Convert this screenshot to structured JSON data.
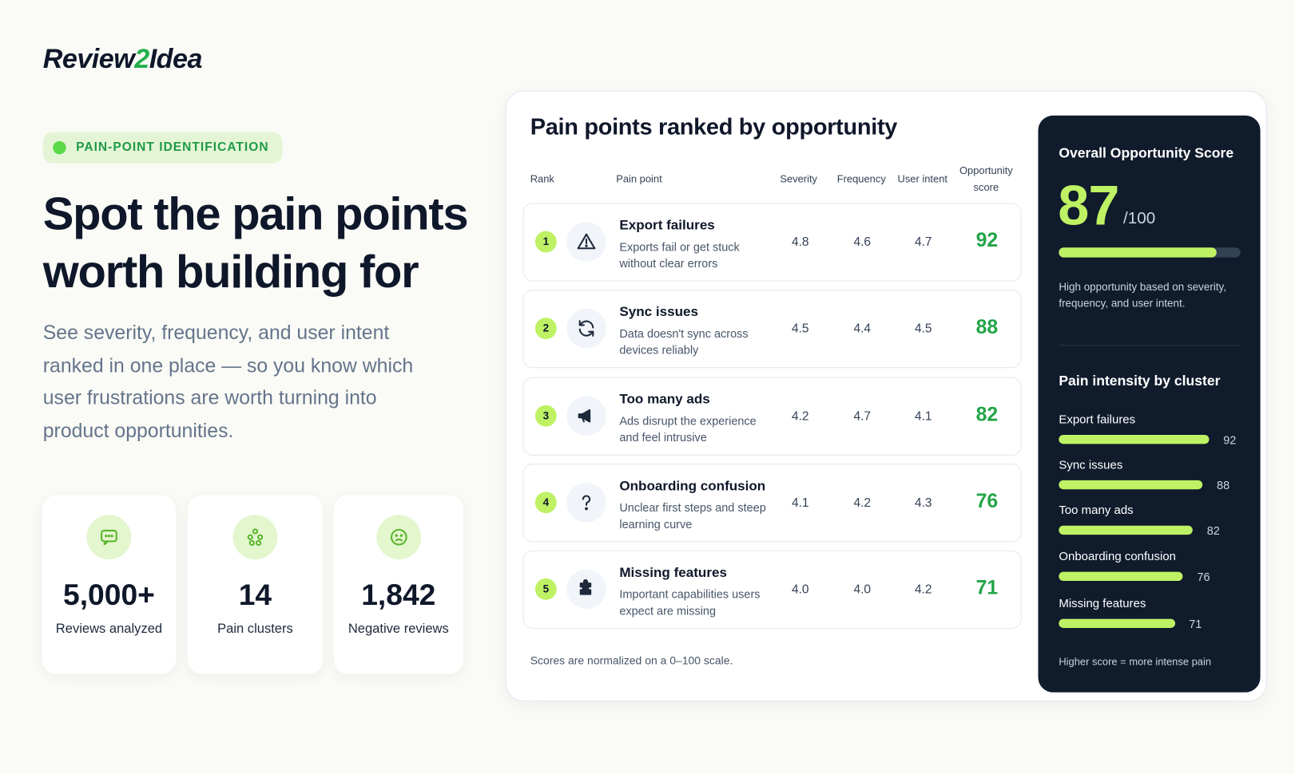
{
  "header": {
    "logo": {
      "start": "Review",
      "accent": "2",
      "end": "Idea"
    }
  },
  "hero": {
    "badge": "PAIN-POINT IDENTIFICATION",
    "title": "Spot the pain points worth building for",
    "description": "See severity, frequency, and user intent ranked in one place — so you know which user frustrations are worth turning into product opportunities."
  },
  "stats": [
    {
      "value": "5,000+",
      "label": "Reviews analyzed"
    },
    {
      "value": "14",
      "label": "Pain clusters"
    },
    {
      "value": "1,842",
      "label": "Negative reviews"
    }
  ],
  "table": {
    "title": "Pain points ranked by opportunity",
    "columns": [
      "Rank",
      "Pain point",
      "Severity",
      "Frequency",
      "User intent",
      "Opportunity score"
    ],
    "rows": [
      {
        "rank": "1",
        "title": "Export failures",
        "description": "Exports fail or get stuck without clear errors",
        "severity": "4.8",
        "frequency": "4.6",
        "intent": "4.7",
        "score": "92"
      },
      {
        "rank": "2",
        "title": "Sync issues",
        "description": "Data doesn't sync across devices reliably",
        "severity": "4.5",
        "frequency": "4.4",
        "intent": "4.5",
        "score": "88"
      },
      {
        "rank": "3",
        "title": "Too many ads",
        "description": "Ads disrupt the experience and feel intrusive",
        "severity": "4.2",
        "frequency": "4.7",
        "intent": "4.1",
        "score": "82"
      },
      {
        "rank": "4",
        "title": "Onboarding confusion",
        "description": "Unclear first steps and steep learning curve",
        "severity": "4.1",
        "frequency": "4.2",
        "intent": "4.3",
        "score": "76"
      },
      {
        "rank": "5",
        "title": "Missing features",
        "description": "Important capabilities users expect are missing",
        "severity": "4.0",
        "frequency": "4.0",
        "intent": "4.2",
        "score": "71"
      }
    ],
    "footnote": "Scores are normalized on a 0–100 scale."
  },
  "overall": {
    "title": "Overall Opportunity Score",
    "score": 87,
    "max": {
      "value": 100,
      "label": "/100"
    },
    "description": "High opportunity based on severity, frequency, and user intent."
  },
  "clusters": {
    "title": "Pain intensity by cluster",
    "items": [
      {
        "name": "Export failures",
        "value": 92
      },
      {
        "name": "Sync issues",
        "value": 88
      },
      {
        "name": "Too many ads",
        "value": 82
      },
      {
        "name": "Onboarding confusion",
        "value": 76
      },
      {
        "name": "Missing features",
        "value": 71
      }
    ],
    "footnote": "Higher score = more intense pain"
  }
}
